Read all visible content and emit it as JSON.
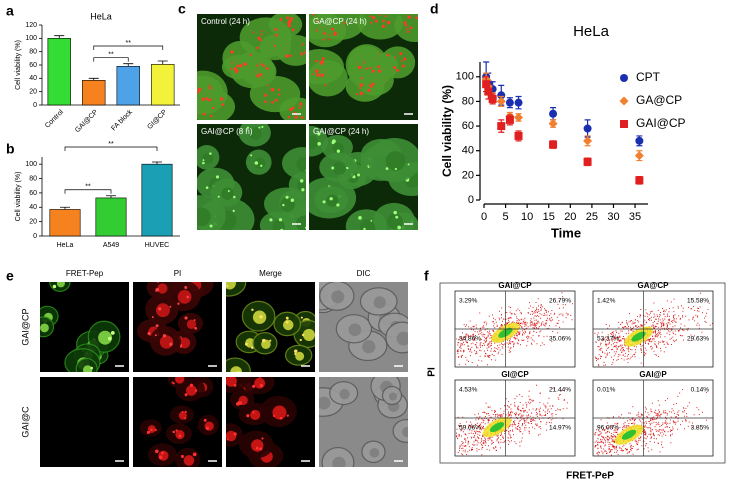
{
  "panel_labels": [
    "a",
    "b",
    "c",
    "d",
    "e",
    "f"
  ],
  "chart_data": [
    {
      "type": "bar",
      "title": "HeLa",
      "y_label": "Cell viability (%)",
      "categories": [
        "Control",
        "GAI@CP",
        "FA block",
        "GI@CP"
      ],
      "values": [
        100,
        37,
        58,
        61
      ],
      "errors": [
        4,
        3,
        4,
        5
      ],
      "colors": [
        "#33dd33",
        "#f5821f",
        "#4ea3e8",
        "#f2f23a"
      ],
      "ylim": [
        0,
        120
      ],
      "yticks": [
        0,
        20,
        40,
        60,
        80,
        100,
        120
      ],
      "brackets": [
        {
          "from": 1,
          "to": 2,
          "label": "**"
        },
        {
          "from": 1,
          "to": 3,
          "label": "**"
        }
      ]
    },
    {
      "type": "bar",
      "y_label": "Cell viability (%)",
      "categories": [
        "HeLa",
        "A549",
        "HUVEC"
      ],
      "values": [
        37,
        53,
        100
      ],
      "errors": [
        3,
        3,
        3
      ],
      "colors": [
        "#f5821f",
        "#33cc33",
        "#1a9fb5"
      ],
      "ylim": [
        0,
        110
      ],
      "yticks": [
        0,
        20,
        40,
        60,
        80,
        100
      ],
      "brackets": [
        {
          "from": 0,
          "to": 1,
          "label": "**"
        },
        {
          "from": 0,
          "to": 2,
          "label": "**"
        }
      ]
    },
    {
      "type": "scatter",
      "title": "HeLa",
      "x_label": "Time",
      "y_label": "Cell viability (%)",
      "xlim": [
        0,
        38
      ],
      "xticks": [
        0,
        5,
        10,
        15,
        20,
        25,
        30,
        35
      ],
      "ylim": [
        0,
        112
      ],
      "yticks": [
        0,
        20,
        40,
        60,
        80,
        100
      ],
      "series": [
        {
          "name": "CPT",
          "color": "#1a2fb0",
          "marker": "circle",
          "x": [
            0.5,
            1,
            2,
            4,
            6,
            8,
            16,
            24,
            36
          ],
          "values": [
            100,
            95,
            90,
            85,
            79,
            79,
            70,
            58,
            48
          ],
          "errors": [
            12,
            8,
            6,
            8,
            4,
            5,
            5,
            7,
            4
          ]
        },
        {
          "name": "GA@CP",
          "color": "#f08030",
          "marker": "diamond",
          "x": [
            0.5,
            1,
            2,
            4,
            6,
            8,
            16,
            24,
            36
          ],
          "values": [
            98,
            92,
            83,
            80,
            68,
            67,
            62,
            48,
            36
          ],
          "errors": [
            5,
            5,
            4,
            4,
            3,
            3,
            3,
            4,
            4
          ]
        },
        {
          "name": "GAI@CP",
          "color": "#e02020",
          "marker": "square",
          "x": [
            0.5,
            1,
            2,
            4,
            6,
            8,
            16,
            24,
            36
          ],
          "values": [
            94,
            88,
            82,
            60,
            65,
            52,
            45,
            31,
            16
          ],
          "errors": [
            6,
            6,
            4,
            5,
            4,
            4,
            3,
            3,
            3
          ]
        }
      ]
    }
  ],
  "microscopy_c": {
    "labels": [
      "Control (24 h)",
      "GA@CP (24 h)",
      "GAI@CP (8 h)",
      "GAI@CP (24 h)"
    ]
  },
  "microscopy_e": {
    "columns": [
      "FRET-Pep",
      "PI",
      "Merge",
      "DIC"
    ],
    "rows": [
      "GAI@CP",
      "GAI@C"
    ]
  },
  "flow_f": {
    "x_label": "FRET-PeP",
    "y_label": "PI",
    "plots": [
      {
        "title": "GAI@CP",
        "quadrants": [
          "3.29%",
          "26.79%",
          "34.86%",
          "35.06%"
        ]
      },
      {
        "title": "GA@CP",
        "quadrants": [
          "1.42%",
          "15.58%",
          "53.37%",
          "29.63%"
        ]
      },
      {
        "title": "GI@CP",
        "quadrants": [
          "4.53%",
          "21.44%",
          "59.06%",
          "14.97%"
        ]
      },
      {
        "title": "GAI@P",
        "quadrants": [
          "0.01%",
          "0.14%",
          "96.00%",
          "3.85%"
        ]
      }
    ]
  }
}
